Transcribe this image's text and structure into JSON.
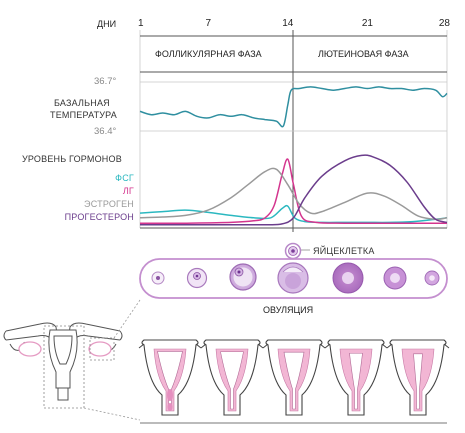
{
  "labels": {
    "days": "ДНИ",
    "follicular_phase": "ФОЛЛИКУЛЯРНАЯ ФАЗА",
    "luteal_phase": "ЛЮТЕИНОВАЯ ФАЗА",
    "temp_high": "36.7°",
    "temp_low": "36.4°",
    "basal_temp_line1": "БАЗАЛЬНАЯ",
    "basal_temp_line2": "ТЕМПЕРАТУРА",
    "hormone_level": "УРОВЕНЬ ГОРМОНОВ",
    "egg_cell": "ЯЙЦЕКЛЕТКА",
    "ovulation": "ОВУЛЯЦИЯ"
  },
  "chart_data": {
    "type": "line",
    "x_ticks": [
      {
        "day": 1,
        "label": "1"
      },
      {
        "day": 7,
        "label": "7"
      },
      {
        "day": 14,
        "label": "14"
      },
      {
        "day": 21,
        "label": "21"
      },
      {
        "day": 28,
        "label": "28"
      }
    ],
    "xlim": [
      1,
      28
    ],
    "basal_temperature": {
      "color": "#2f8fa0",
      "ylim": [
        36.4,
        36.7
      ],
      "x": [
        1,
        2,
        3,
        4,
        5,
        6,
        7,
        8,
        9,
        10,
        11,
        12,
        13,
        13.6,
        14,
        14.3,
        15,
        16,
        17,
        18,
        19,
        20,
        21,
        22,
        23,
        24,
        25,
        26,
        27,
        27.6,
        28
      ],
      "y": [
        36.52,
        36.5,
        36.51,
        36.5,
        36.52,
        36.49,
        36.48,
        36.5,
        36.49,
        36.5,
        36.48,
        36.47,
        36.46,
        36.43,
        36.56,
        36.65,
        36.66,
        36.67,
        36.66,
        36.65,
        36.66,
        36.67,
        36.66,
        36.67,
        36.66,
        36.66,
        36.65,
        36.66,
        36.65,
        36.61,
        36.63
      ]
    },
    "hormones": {
      "ylim": [
        0,
        100
      ],
      "series": [
        {
          "name": "ФСГ",
          "color": "#2bb8c0",
          "x": [
            1,
            3,
            5,
            7,
            9,
            11,
            12.5,
            13.5,
            14,
            14.6,
            15.5,
            17,
            19,
            21,
            23,
            25,
            27,
            28
          ],
          "y": [
            18,
            20,
            22,
            19,
            15,
            12,
            12,
            24,
            27,
            12,
            7,
            6,
            6,
            6,
            6,
            7,
            10,
            12
          ]
        },
        {
          "name": "ЛГ",
          "color": "#d4358e",
          "x": [
            1,
            5,
            9,
            11,
            12,
            12.8,
            13.5,
            14,
            14.5,
            15.2,
            16.5,
            19,
            23,
            27,
            28
          ],
          "y": [
            5,
            5,
            6,
            8,
            12,
            28,
            68,
            88,
            55,
            14,
            6,
            5,
            5,
            5,
            5
          ]
        },
        {
          "name": "ЭСТРОГЕН",
          "color": "#9a9a9a",
          "x": [
            1,
            3,
            5,
            7,
            9,
            10.5,
            12,
            13,
            14,
            15,
            16,
            17,
            19,
            21,
            22.5,
            24,
            25.5,
            27,
            28
          ],
          "y": [
            12,
            13,
            15,
            22,
            38,
            55,
            72,
            75,
            55,
            30,
            18,
            20,
            32,
            44,
            40,
            28,
            14,
            10,
            12
          ]
        },
        {
          "name": "ПРОГЕСТЕРОН",
          "color": "#6b3d8c",
          "x": [
            1,
            5,
            9,
            12,
            13.5,
            14.5,
            15.5,
            17,
            19,
            20.5,
            21.5,
            23,
            24.5,
            26,
            27,
            28
          ],
          "y": [
            3,
            3,
            3,
            3,
            4,
            12,
            38,
            66,
            86,
            93,
            91,
            80,
            58,
            26,
            10,
            6
          ]
        }
      ]
    }
  }
}
